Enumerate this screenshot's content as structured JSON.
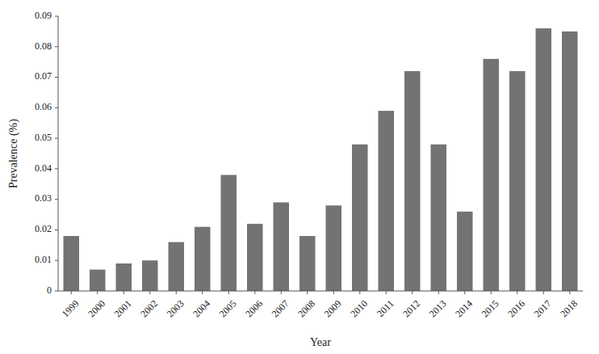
{
  "chart_data": {
    "type": "bar",
    "categories": [
      "1999",
      "2000",
      "2001",
      "2002",
      "2003",
      "2004",
      "2005",
      "2006",
      "2007",
      "2008",
      "2009",
      "2010",
      "2011",
      "2012",
      "2013",
      "2014",
      "2015",
      "2016",
      "2017",
      "2018"
    ],
    "values": [
      0.018,
      0.007,
      0.009,
      0.01,
      0.016,
      0.021,
      0.038,
      0.022,
      0.029,
      0.018,
      0.028,
      0.048,
      0.059,
      0.072,
      0.048,
      0.026,
      0.076,
      0.072,
      0.086,
      0.085
    ],
    "color": "#737373",
    "xlabel": "Year",
    "ylabel": "Prevalence (%)",
    "ylim": [
      0,
      0.09
    ],
    "yticks": [
      0,
      0.01,
      0.02,
      0.03,
      0.04,
      0.05,
      0.06,
      0.07,
      0.08,
      0.09
    ],
    "grid": false
  }
}
